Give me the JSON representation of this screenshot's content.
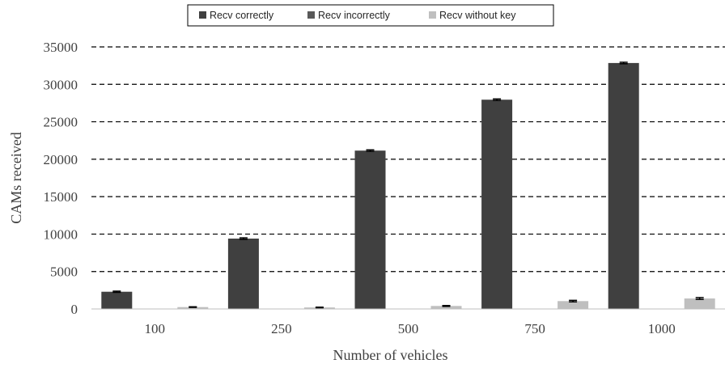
{
  "chart_data": {
    "type": "bar",
    "categories": [
      "100",
      "250",
      "500",
      "750",
      "1000"
    ],
    "series": [
      {
        "name": "Recv correctly",
        "color": "#404040",
        "values": [
          2300,
          9400,
          21150,
          27950,
          32850
        ],
        "errors": [
          80,
          100,
          100,
          100,
          100
        ]
      },
      {
        "name": "Recv incorrectly",
        "color": "#595959",
        "values": [
          0,
          0,
          0,
          0,
          0
        ],
        "errors": [
          0,
          0,
          0,
          0,
          0
        ]
      },
      {
        "name": "Recv without key",
        "color": "#bfbfbf",
        "values": [
          250,
          200,
          400,
          1050,
          1400
        ],
        "errors": [
          40,
          40,
          60,
          100,
          120
        ]
      }
    ],
    "xlabel": "Number of vehicles",
    "ylabel": "CAMs received",
    "ylim": [
      0,
      35000
    ],
    "yticks": [
      0,
      5000,
      10000,
      15000,
      20000,
      25000,
      30000,
      35000
    ],
    "grid": "horizontal dashed",
    "legend_position": "top-center"
  }
}
